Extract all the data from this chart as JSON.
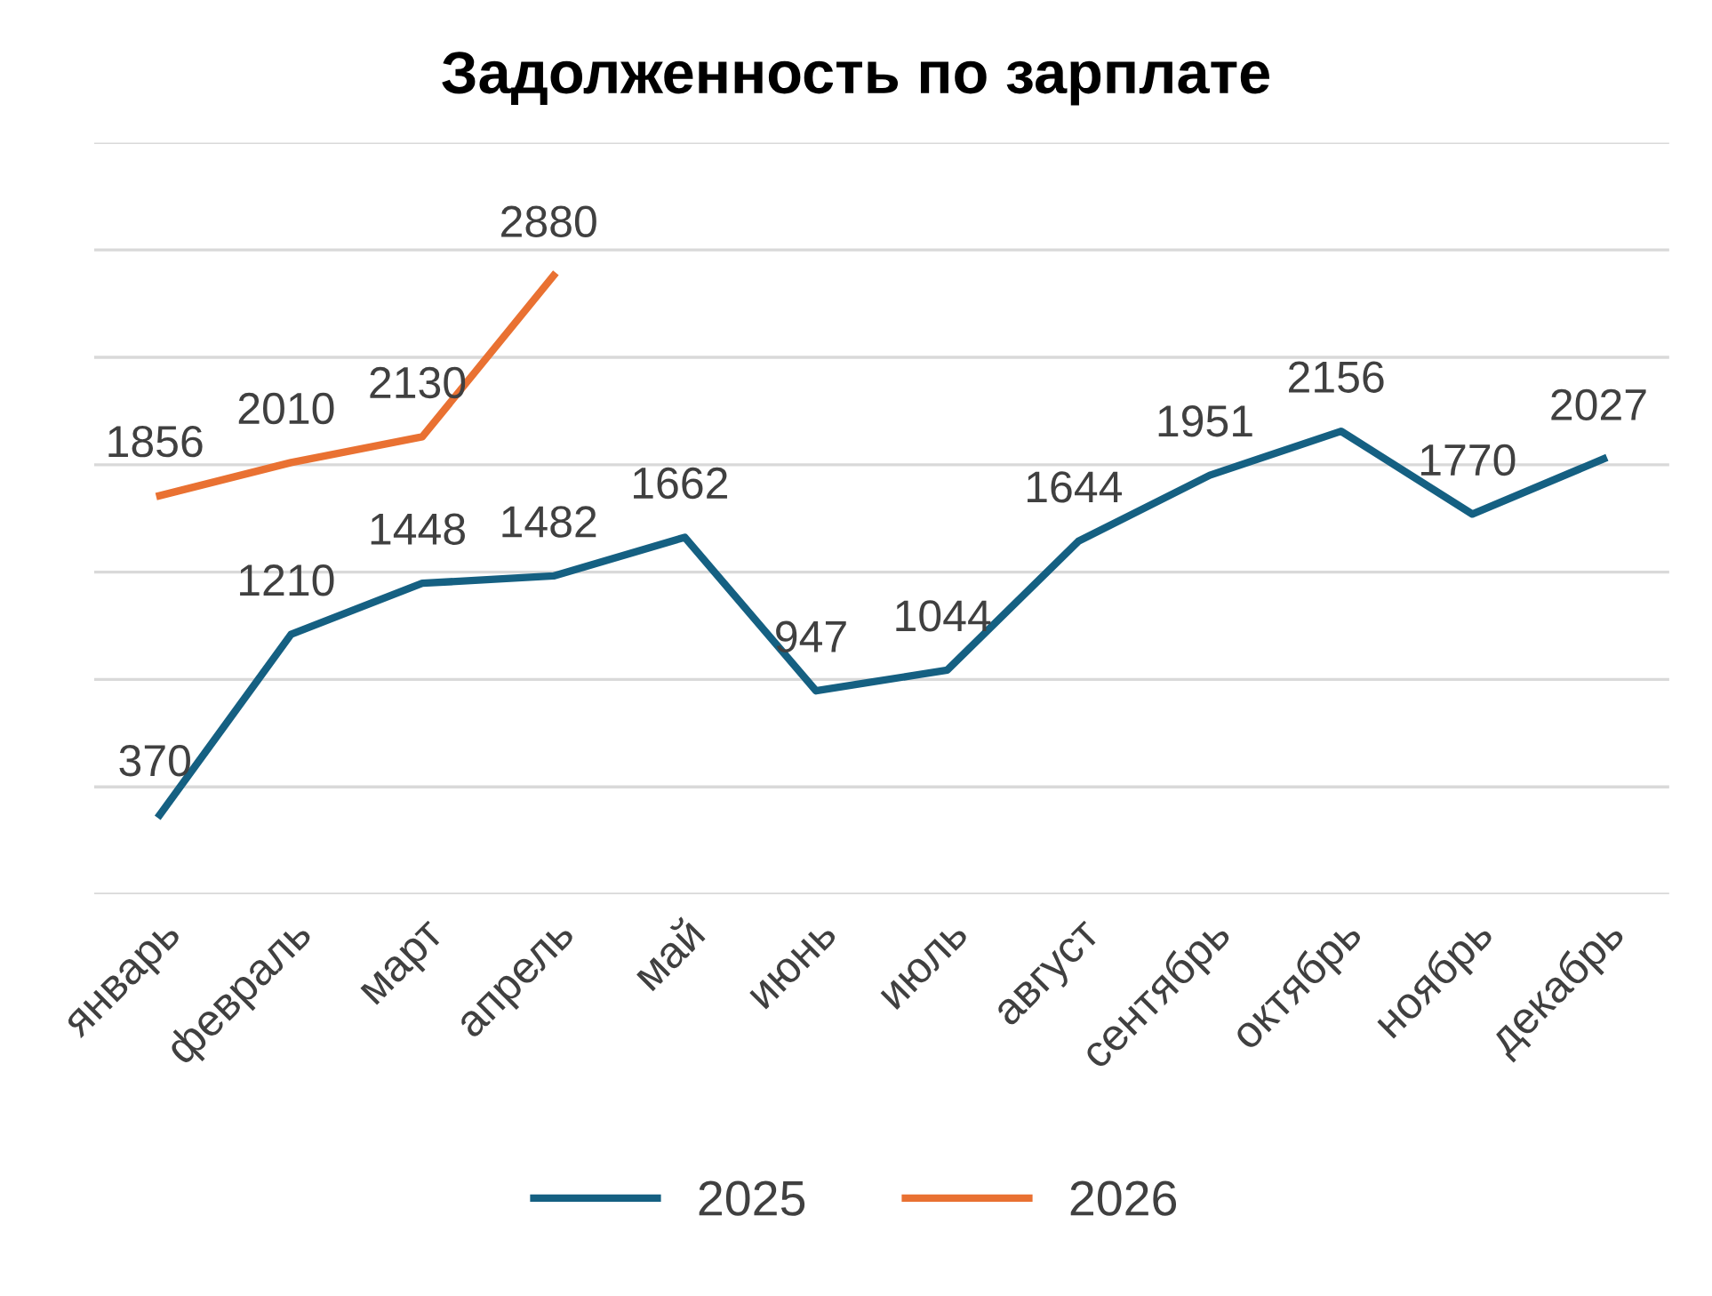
{
  "chart_data": {
    "type": "line",
    "title": "Задолженность по зарплате",
    "categories": [
      "январь",
      "февраль",
      "март",
      "апрель",
      "май",
      "июнь",
      "июль",
      "август",
      "сентябрь",
      "октябрь",
      "ноябрь",
      "декабрь"
    ],
    "series": [
      {
        "name": "2025",
        "color": "#156082",
        "values": [
          370,
          1210,
          1448,
          1482,
          1662,
          947,
          1044,
          1644,
          1951,
          2156,
          1770,
          2027
        ]
      },
      {
        "name": "2026",
        "color": "#e97132",
        "values": [
          1856,
          2010,
          2130,
          2880,
          null,
          null,
          null,
          null,
          null,
          null,
          null,
          null
        ]
      }
    ],
    "ylim": [
      0,
      3500
    ],
    "yticks": [
      {
        "value": 0,
        "label": null
      },
      {
        "value": 500,
        "label": null
      },
      {
        "value": 1000,
        "label": null
      },
      {
        "value": 1500,
        "label": null
      },
      {
        "value": 2000,
        "label": null
      },
      {
        "value": 2500,
        "label": null
      },
      {
        "value": 3000,
        "label": null
      },
      {
        "value": 3500,
        "label": null
      }
    ],
    "tick_labels": "x",
    "grid": "y",
    "legend": "bottom",
    "data_labels": true,
    "marker": "none",
    "line_style": "solid"
  }
}
